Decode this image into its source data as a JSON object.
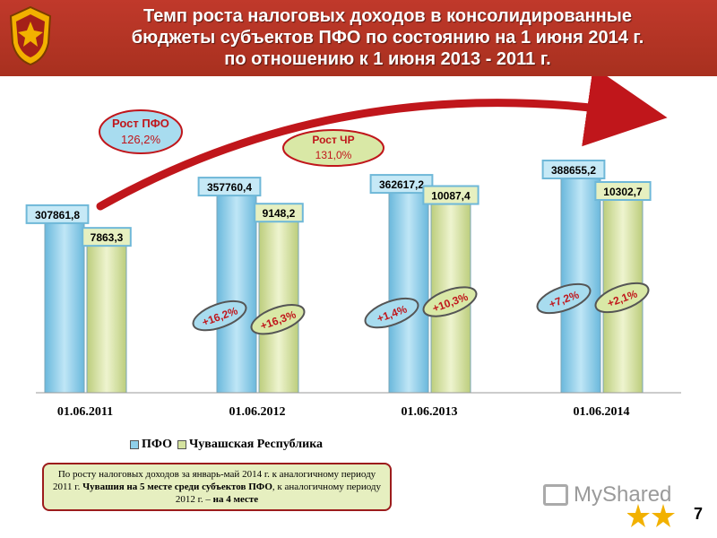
{
  "title_lines": [
    "Темп роста налоговых доходов в консолидированные",
    "бюджеты субъектов ПФО по состоянию на 1 июня 2014 г.",
    "по отношению к 1 июня 2013 - 2011 г."
  ],
  "chart_data": {
    "type": "bar",
    "categories": [
      "01.06.2011",
      "01.06.2012",
      "01.06.2013",
      "01.06.2014"
    ],
    "series": [
      {
        "name": "ПФО",
        "values": [
          307861.8,
          357760.4,
          362617.2,
          388655.2
        ],
        "labels": [
          "307861,8",
          "357760,4",
          "362617,2",
          "388655,2"
        ],
        "color": "#8fd0ea"
      },
      {
        "name": "Чувашская Республика",
        "values": [
          7863.3,
          9148.2,
          10087.4,
          10302.7
        ],
        "labels": [
          "7863,3",
          "9148,2",
          "10087,4",
          "10302,7"
        ],
        "color": "#d5e3a0"
      }
    ],
    "growth_pfo": [
      "",
      "+16,2%",
      "+1,4%",
      "+7,2%"
    ],
    "growth_chr": [
      "",
      "+16,3%",
      "+10,3%",
      "+2,1%"
    ],
    "legend_position": "bottom",
    "grid": false
  },
  "callouts": {
    "pfo_label": "Рост ПФО",
    "pfo_value": "126,2%",
    "chr_label": "Рост ЧР",
    "chr_value": "131,0%"
  },
  "legend": {
    "pfo": "ПФО",
    "chr": "Чувашская Республика"
  },
  "note": {
    "part1": "По росту налоговых доходов за январь-май 2014 г. к аналогичному периоду 2011 г. ",
    "part2": "Чувашия на 5 месте среди субъектов ПФО",
    "part3": ", к аналогичному периоду 2012 г. – ",
    "part4": "на 4 месте"
  },
  "watermark": "MyShared",
  "page_number": "7",
  "colors": {
    "header": "#b8352a",
    "pfo": "#8fd0ea",
    "chr": "#d5e3a0",
    "accent_red": "#c0161b"
  }
}
